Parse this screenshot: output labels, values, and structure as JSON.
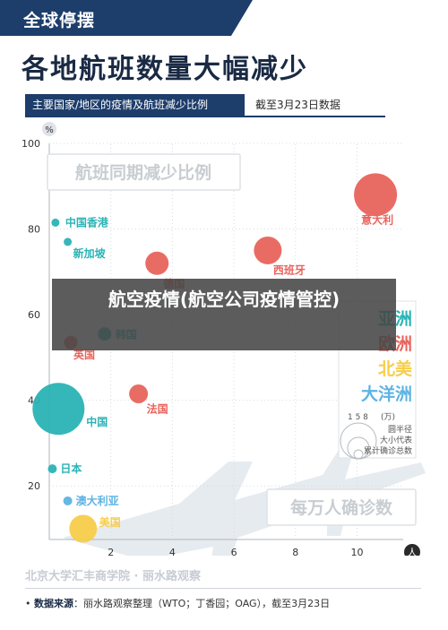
{
  "header": {
    "tag": "全球停摆",
    "title": "各地航班数量大幅减少",
    "subtitle": "主要国家/地区的疫情及航班减少比例",
    "date_note": "截至3月23日数据"
  },
  "overlay": {
    "text": "航空疫情(航空公司疫情管控)"
  },
  "footer": {
    "org": "北京大学汇丰商学院 · 丽水路观察",
    "source_label": "数据来源",
    "source_text": "：丽水路观察整理（WTO；丁香园；OAG），截至3月23日"
  },
  "colors": {
    "asia": "#2ab3b5",
    "europe": "#e8645c",
    "north_america": "#f7cd4a",
    "oceania": "#5db3e3",
    "dark_navy": "#1d3d6b"
  },
  "chart_data": {
    "type": "scatter",
    "ylabel": "%",
    "xunit": "人",
    "xlim": [
      0,
      11.5
    ],
    "ylim": [
      10,
      100
    ],
    "xticks": [
      2,
      4,
      6,
      8,
      10
    ],
    "yticks": [
      20,
      40,
      60,
      80,
      100
    ],
    "y_axis_title": "航班同期减少比例",
    "x_axis_title": "每万人确诊数",
    "size_legend": {
      "title": "(万)",
      "values": [
        "1",
        "5",
        "8"
      ],
      "labels": [
        "圆半径",
        "大小代表",
        "累计确诊总数"
      ]
    },
    "regions": [
      {
        "name": "亚洲",
        "color": "#2ab3b5"
      },
      {
        "name": "欧洲",
        "color": "#e8645c"
      },
      {
        "name": "北美",
        "color": "#f7cd4a"
      },
      {
        "name": "大洋洲",
        "color": "#5db3e3"
      }
    ],
    "points": [
      {
        "label": "中国香港",
        "x": 0.2,
        "y": 81.5,
        "region": "亚洲",
        "color": "#2ab3b5"
      },
      {
        "label": "新加坡",
        "x": 0.6,
        "y": 77,
        "region": "亚洲",
        "color": "#2ab3b5"
      },
      {
        "label": "韩国",
        "x": 1.8,
        "y": 55.5,
        "region": "亚洲",
        "color": "#2ab3b5"
      },
      {
        "label": "中国",
        "x": 0.3,
        "y": 38,
        "region": "亚洲",
        "color": "#2ab3b5"
      },
      {
        "label": "日本",
        "x": 0.1,
        "y": 24,
        "region": "亚洲",
        "color": "#2ab3b5"
      },
      {
        "label": "英国",
        "x": 0.7,
        "y": 53.5,
        "region": "欧洲",
        "color": "#e8645c"
      },
      {
        "label": "德国",
        "x": 3.5,
        "y": 72,
        "region": "欧洲",
        "color": "#e8645c"
      },
      {
        "label": "西班牙",
        "x": 7.1,
        "y": 75,
        "region": "欧洲",
        "color": "#e8645c"
      },
      {
        "label": "意大利",
        "x": 10.6,
        "y": 88,
        "region": "欧洲",
        "color": "#e8645c"
      },
      {
        "label": "法国",
        "x": 2.9,
        "y": 41.5,
        "region": "欧洲",
        "color": "#e8645c"
      },
      {
        "label": "澳大利亚",
        "x": 0.6,
        "y": 16.5,
        "region": "大洋洲",
        "color": "#5db3e3"
      },
      {
        "label": "美国",
        "x": 1.1,
        "y": 10,
        "region": "北美",
        "color": "#f7cd4a"
      }
    ]
  }
}
